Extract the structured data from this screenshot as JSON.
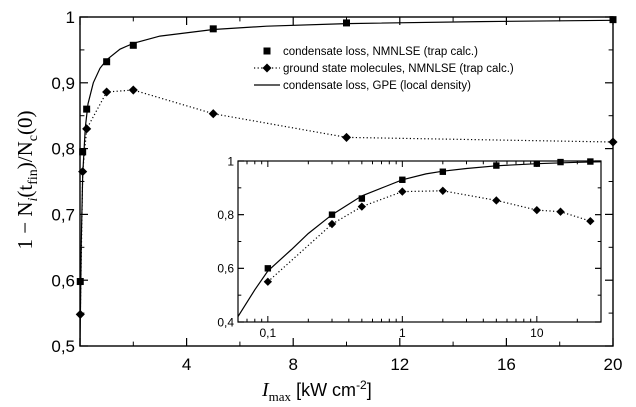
{
  "chart_data": [
    {
      "type": "line",
      "xlabel": "I_max [kW cm^-2]",
      "ylabel": "1 − N_i(t_fin)/N_c(0)",
      "xlim": [
        0,
        20
      ],
      "ylim": [
        0.5,
        1.0
      ],
      "xticks": [
        0,
        4,
        8,
        12,
        16,
        20
      ],
      "xtick_labels": [
        "4",
        "8",
        "12",
        "16",
        "20"
      ],
      "yticks": [
        0.5,
        0.6,
        0.7,
        0.8,
        0.9,
        1.0
      ],
      "ytick_labels": [
        "0,5",
        "0,6",
        "0,7",
        "0,8",
        "0,9",
        "1"
      ],
      "legend_position": "top-right",
      "series": [
        {
          "name": "condensate loss, NMNLSE (trap calc.)",
          "marker": "square",
          "line": "none",
          "points": [
            [
              0.01,
              0.598
            ],
            [
              0.1,
              0.795
            ],
            [
              0.25,
              0.86
            ],
            [
              1.0,
              0.932
            ],
            [
              2.0,
              0.957
            ],
            [
              5.0,
              0.982
            ],
            [
              10.0,
              0.991
            ],
            [
              20.0,
              0.996
            ]
          ]
        },
        {
          "name": "ground state molecules, NMNLSE (trap calc.)",
          "marker": "diamond",
          "line": "dotted",
          "points": [
            [
              0.01,
              0.548
            ],
            [
              0.1,
              0.765
            ],
            [
              0.25,
              0.83
            ],
            [
              1.0,
              0.886
            ],
            [
              2.0,
              0.889
            ],
            [
              5.0,
              0.853
            ],
            [
              10.0,
              0.817
            ],
            [
              20.0,
              0.81
            ]
          ]
        },
        {
          "name": "condensate loss, GPE (local density)",
          "marker": "none",
          "line": "solid",
          "points": [
            [
              0.0,
              0.5
            ],
            [
              0.02,
              0.56
            ],
            [
              0.05,
              0.66
            ],
            [
              0.1,
              0.76
            ],
            [
              0.2,
              0.832
            ],
            [
              0.3,
              0.868
            ],
            [
              0.5,
              0.9
            ],
            [
              0.75,
              0.922
            ],
            [
              1.0,
              0.935
            ],
            [
              1.5,
              0.951
            ],
            [
              2.0,
              0.96
            ],
            [
              3.0,
              0.971
            ],
            [
              5.0,
              0.981
            ],
            [
              7.0,
              0.986
            ],
            [
              10.0,
              0.99
            ],
            [
              15.0,
              0.993
            ],
            [
              20.0,
              0.995
            ]
          ]
        }
      ]
    },
    {
      "type": "line",
      "inset": true,
      "xscale": "log",
      "xlim": [
        0.06,
        30
      ],
      "ylim": [
        0.4,
        1.0
      ],
      "xticks": [
        0.1,
        1,
        10
      ],
      "xtick_labels": [
        "0,1",
        "1",
        "10"
      ],
      "yticks": [
        0.4,
        0.6,
        0.8,
        1.0
      ],
      "ytick_labels": [
        "0,4",
        "0,6",
        "0,8",
        "1"
      ],
      "series": [
        {
          "marker": "square",
          "line": "none",
          "points": [
            [
              0.1,
              0.6
            ],
            [
              0.3,
              0.8
            ],
            [
              0.5,
              0.86
            ],
            [
              1.0,
              0.93
            ],
            [
              2.0,
              0.96
            ],
            [
              5.0,
              0.983
            ],
            [
              10.0,
              0.99
            ],
            [
              15.0,
              0.996
            ],
            [
              25.0,
              0.998
            ]
          ]
        },
        {
          "marker": "diamond",
          "line": "dotted",
          "points": [
            [
              0.1,
              0.55
            ],
            [
              0.3,
              0.765
            ],
            [
              0.5,
              0.83
            ],
            [
              1.0,
              0.886
            ],
            [
              2.0,
              0.889
            ],
            [
              5.0,
              0.853
            ],
            [
              10.0,
              0.817
            ],
            [
              15.0,
              0.811
            ],
            [
              25.0,
              0.776
            ]
          ]
        },
        {
          "marker": "none",
          "line": "solid",
          "points": [
            [
              0.06,
              0.42
            ],
            [
              0.08,
              0.52
            ],
            [
              0.1,
              0.59
            ],
            [
              0.15,
              0.67
            ],
            [
              0.2,
              0.73
            ],
            [
              0.3,
              0.8
            ],
            [
              0.5,
              0.87
            ],
            [
              0.75,
              0.905
            ],
            [
              1.0,
              0.93
            ],
            [
              1.5,
              0.952
            ],
            [
              2.0,
              0.962
            ],
            [
              3.0,
              0.972
            ],
            [
              5.0,
              0.982
            ],
            [
              10.0,
              0.99
            ],
            [
              20.0,
              0.995
            ],
            [
              30.0,
              0.997
            ]
          ]
        }
      ]
    }
  ]
}
